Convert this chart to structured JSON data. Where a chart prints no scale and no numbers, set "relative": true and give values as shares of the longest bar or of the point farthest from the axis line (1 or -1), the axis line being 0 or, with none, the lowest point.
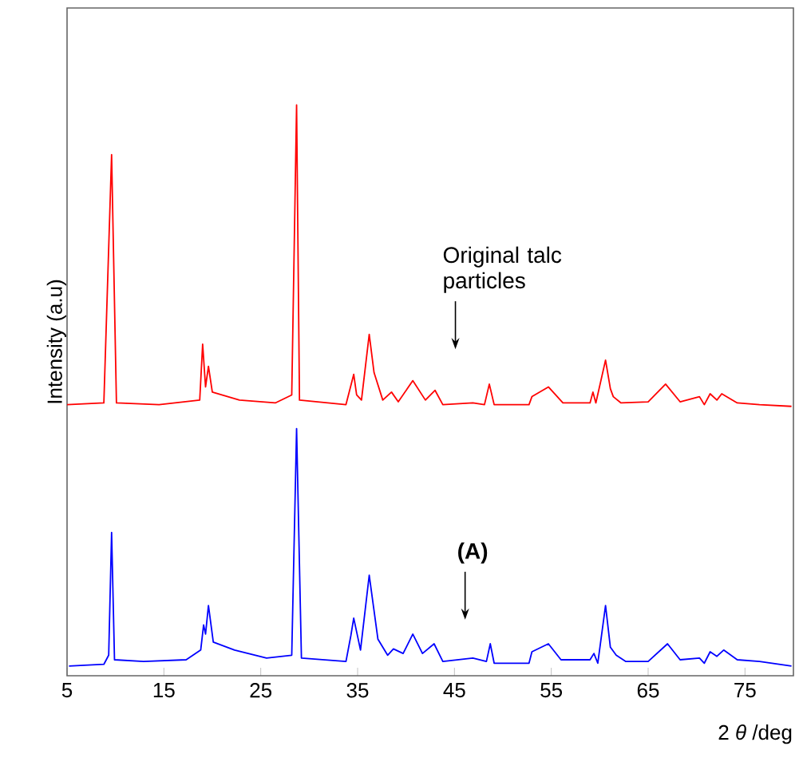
{
  "chart_data": {
    "type": "line",
    "relative": true,
    "xlabel": "2 *θ* /deg",
    "ylabel": "Intensity (a.u)",
    "xlim": [
      5,
      80
    ],
    "xticks": [
      5,
      15,
      25,
      35,
      45,
      55,
      65,
      75
    ],
    "annotations": [
      "Original talc particles",
      "(A)"
    ],
    "series": [
      {
        "color": "#ff0000",
        "x": [
          5,
          8.8,
          9.6,
          10.1,
          14.5,
          18.7,
          19.0,
          19.3,
          19.6,
          20.0,
          22.8,
          26.5,
          28.2,
          28.7,
          29.0,
          33.8,
          34.6,
          34.9,
          35.4,
          36.2,
          36.7,
          37.6,
          38.5,
          39.2,
          40.7,
          42.0,
          43.0,
          43.8,
          46.9,
          48.1,
          48.6,
          49.1,
          52.7,
          53.0,
          54.7,
          56.2,
          59.0,
          59.3,
          59.6,
          60.6,
          61.1,
          61.4,
          62.2,
          65.0,
          66.8,
          68.3,
          70.3,
          70.8,
          71.4,
          72.1,
          72.6,
          74.2,
          76.5,
          79.8
        ],
        "values": [
          0.475,
          0.478,
          0.913,
          0.478,
          0.475,
          0.483,
          0.581,
          0.506,
          0.542,
          0.497,
          0.483,
          0.478,
          0.492,
          1,
          0.483,
          0.475,
          0.528,
          0.492,
          0.483,
          0.598,
          0.531,
          0.483,
          0.497,
          0.48,
          0.517,
          0.483,
          0.5,
          0.475,
          0.478,
          0.475,
          0.511,
          0.475,
          0.475,
          0.489,
          0.506,
          0.478,
          0.478,
          0.497,
          0.478,
          0.553,
          0.503,
          0.489,
          0.478,
          0.48,
          0.511,
          0.48,
          0.489,
          0.475,
          0.494,
          0.483,
          0.494,
          0.478,
          0.475,
          0.472
        ]
      },
      {
        "color": "#0000ff",
        "x": [
          5.2,
          8.8,
          9.3,
          9.6,
          9.9,
          12.9,
          17.3,
          18.8,
          19.1,
          19.3,
          19.6,
          20.1,
          22.3,
          25.6,
          28.2,
          28.7,
          29.2,
          33.8,
          34.3,
          34.6,
          35.3,
          36.2,
          37.1,
          38.1,
          38.7,
          39.7,
          40.7,
          41.7,
          42.9,
          43.8,
          46.9,
          48.3,
          48.7,
          49.1,
          52.7,
          53.0,
          54.7,
          56.0,
          59.0,
          59.4,
          59.8,
          60.6,
          61.1,
          61.7,
          62.7,
          65.0,
          67.0,
          68.3,
          70.3,
          70.8,
          71.4,
          72.1,
          72.8,
          74.2,
          76.5,
          79.8
        ],
        "values": [
          0.017,
          0.02,
          0.036,
          0.251,
          0.028,
          0.025,
          0.028,
          0.045,
          0.089,
          0.073,
          0.123,
          0.059,
          0.045,
          0.031,
          0.036,
          0.433,
          0.031,
          0.025,
          0.07,
          0.101,
          0.045,
          0.176,
          0.064,
          0.036,
          0.047,
          0.039,
          0.073,
          0.039,
          0.056,
          0.025,
          0.031,
          0.025,
          0.056,
          0.022,
          0.022,
          0.042,
          0.056,
          0.028,
          0.028,
          0.039,
          0.022,
          0.123,
          0.05,
          0.036,
          0.025,
          0.025,
          0.056,
          0.028,
          0.031,
          0.022,
          0.042,
          0.034,
          0.045,
          0.028,
          0.025,
          0.017
        ]
      }
    ]
  }
}
